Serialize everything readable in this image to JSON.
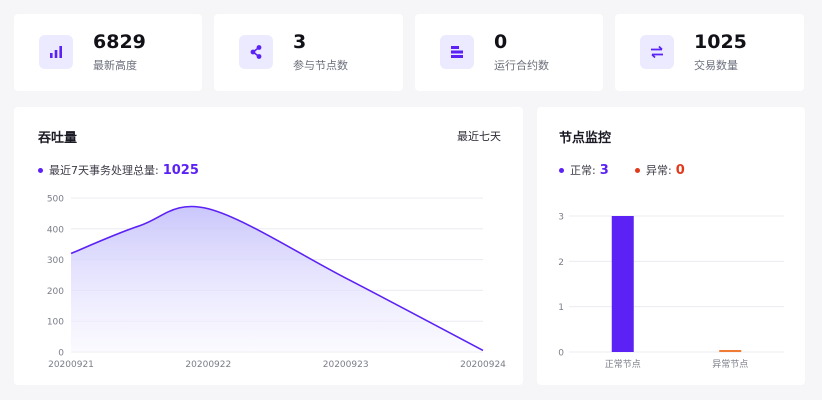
{
  "colors": {
    "accent": "#5b21f5",
    "area_top": "#c7c3fb",
    "area_bottom": "#f6f5ff",
    "abnormal": "#e03a1b",
    "abnormal_bar": "#ef7b35",
    "icon_bg": "#ebeaff",
    "grid": "#ececf1",
    "axis_text": "#7b7e88"
  },
  "stats": [
    {
      "icon": "bar-chart-icon",
      "value": "6829",
      "label": "最新高度"
    },
    {
      "icon": "share-nodes-icon",
      "value": "3",
      "label": "参与节点数"
    },
    {
      "icon": "stack-bars-icon",
      "value": "0",
      "label": "运行合约数"
    },
    {
      "icon": "swap-arrows-icon",
      "value": "1025",
      "label": "交易数量"
    }
  ],
  "throughput": {
    "title": "吞吐量",
    "range": "最近七天",
    "legend_label": "最近7天事务处理总量:",
    "legend_value": "1025"
  },
  "nodes": {
    "title": "节点监控",
    "normal_label": "正常:",
    "normal_value": "3",
    "abnormal_label": "异常:",
    "abnormal_value": "0"
  },
  "chart_data": [
    {
      "type": "area",
      "title": "吞吐量",
      "categories": [
        "20200921",
        "20200922",
        "20200923",
        "20200924"
      ],
      "x": [
        0,
        0.5,
        1,
        2,
        3
      ],
      "values": [
        320,
        410,
        465,
        240,
        5
      ],
      "ylim": [
        0,
        500
      ],
      "yticks": [
        0,
        100,
        200,
        300,
        400,
        500
      ],
      "grid": true
    },
    {
      "type": "bar",
      "title": "节点监控",
      "categories": [
        "正常节点",
        "异常节点"
      ],
      "values": [
        3,
        0
      ],
      "ylim": [
        0,
        3
      ],
      "yticks": [
        0,
        1,
        2,
        3
      ],
      "grid": true
    }
  ]
}
